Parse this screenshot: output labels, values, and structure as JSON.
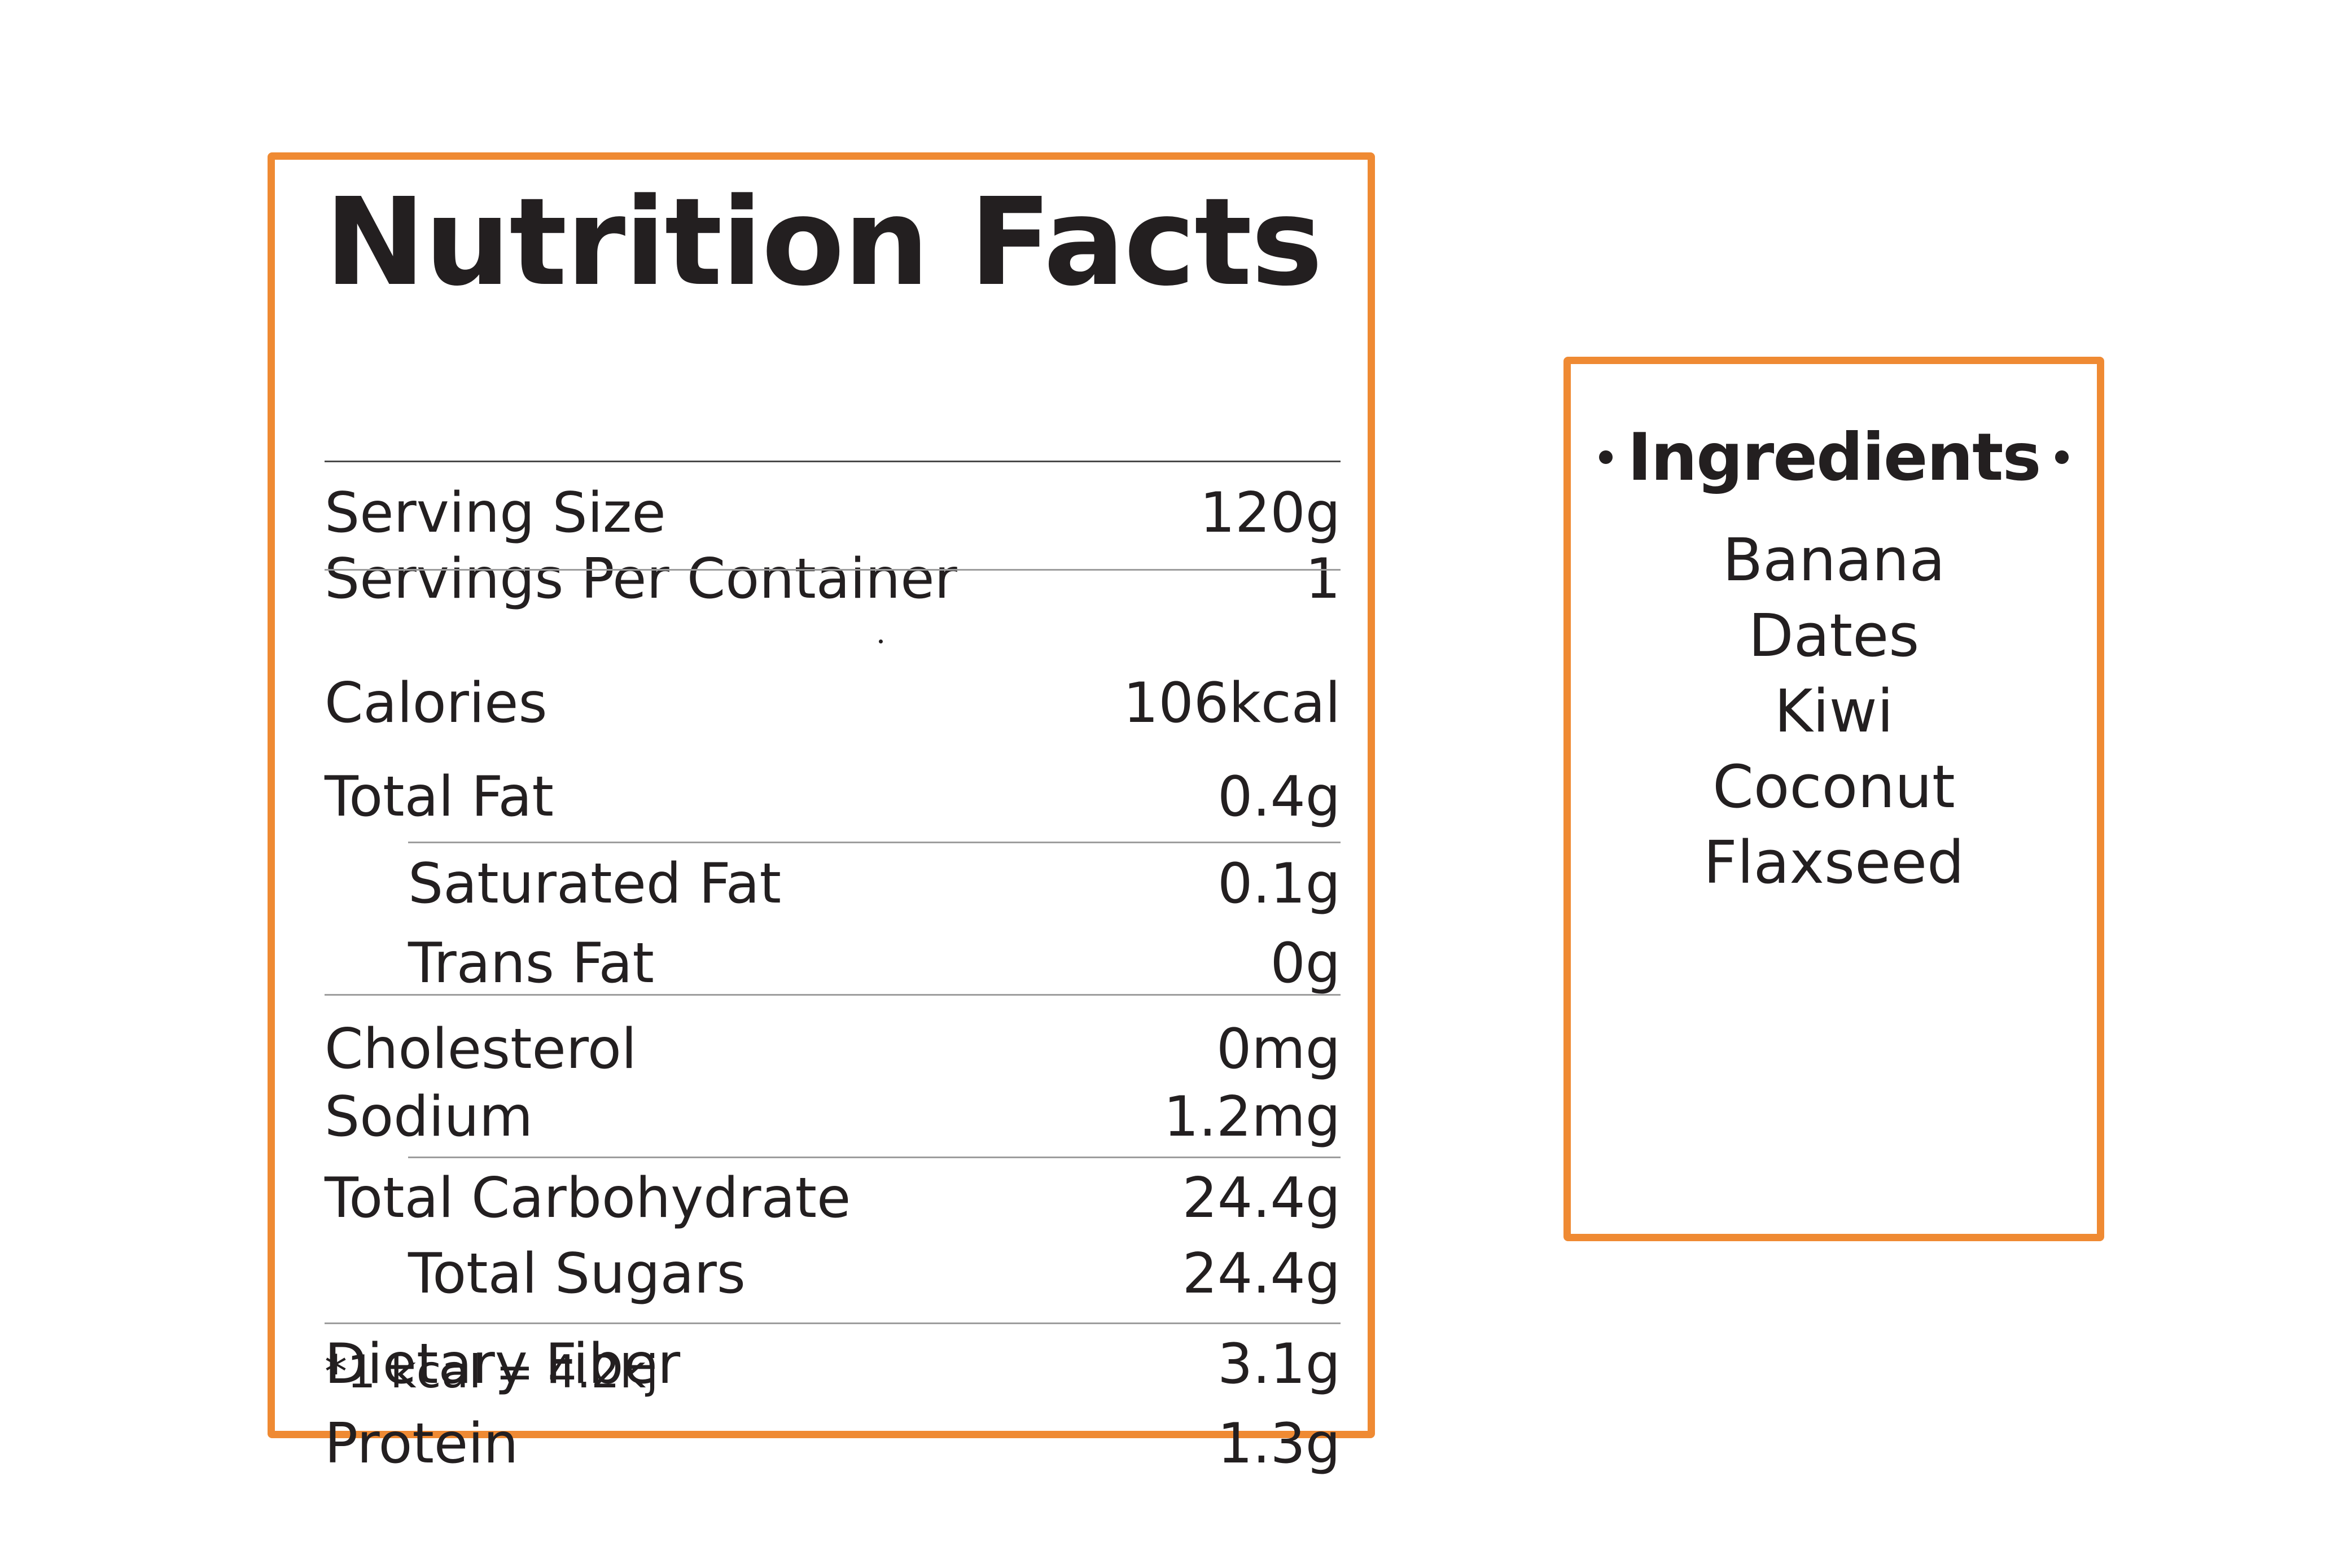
{
  "colors": {
    "border": "#ef8a33",
    "text": "#231f20",
    "rule": "#9d9d9d"
  },
  "nutrition": {
    "title": "Nutrition Facts",
    "serving_size": {
      "label": "Serving Size",
      "value": "120g"
    },
    "servings_per_container": {
      "label": "Servings Per Container",
      "value": "1"
    },
    "calories": {
      "label": "Calories",
      "value": "106kcal"
    },
    "total_fat": {
      "label": "Total Fat",
      "value": "0.4g"
    },
    "saturated_fat": {
      "label": "Saturated Fat",
      "value": "0.1g"
    },
    "trans_fat": {
      "label": "Trans Fat",
      "value": "0g"
    },
    "cholesterol": {
      "label": "Cholesterol",
      "value": "0mg"
    },
    "sodium": {
      "label": "Sodium",
      "value": "1.2mg"
    },
    "total_carbohydrate": {
      "label": "Total Carbohydrate",
      "value": "24.4g"
    },
    "total_sugars": {
      "label": "Total Sugars",
      "value": "24.4g"
    },
    "dietary_fiber": {
      "label": "Dietary Fiber",
      "value": "3.1g"
    },
    "protein": {
      "label": "Protein",
      "value": "1.3g"
    },
    "footnote": "*1 kcal = 4.2kj"
  },
  "ingredients": {
    "title": "Ingredients",
    "items": [
      "Banana",
      "Dates",
      "Kiwi",
      "Coconut",
      "Flaxseed"
    ]
  }
}
